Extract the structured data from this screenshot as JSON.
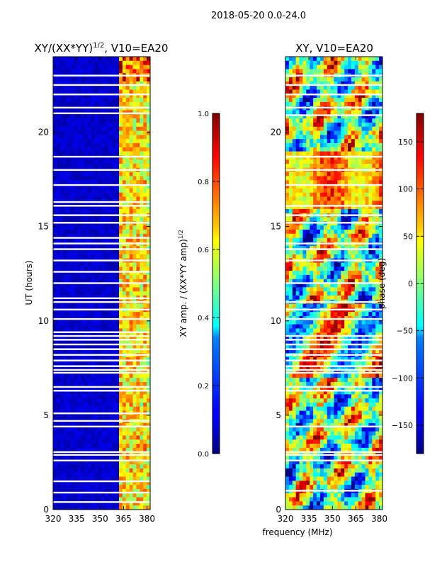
{
  "suptitle": "2018-05-20 0.0-24.0",
  "chart_data": [
    {
      "type": "heatmap",
      "title_main": "XY/(XX*YY)",
      "title_exp": "1/2",
      "title_tail": ", V10=EA20",
      "xlabel": "",
      "ylabel": "UT (hours)",
      "xlim": [
        320,
        382
      ],
      "ylim": [
        0,
        24
      ],
      "xticks": [
        320,
        335,
        350,
        365,
        380
      ],
      "yticks": [
        0,
        5,
        10,
        15,
        20
      ],
      "colorbar": {
        "label_main": "XY amp. / (XX*YY amp)",
        "label_exp": "1/2",
        "range": [
          0.0,
          1.0
        ],
        "ticks": [
          "0.0",
          "0.2",
          "0.4",
          "0.6",
          "0.8",
          "1.0"
        ],
        "colormap": "jet"
      },
      "flagged_hours": [
        0.4,
        0.9,
        1.5,
        2.6,
        2.9,
        3.05,
        4.4,
        4.7,
        5.1,
        6.3,
        6.5,
        7.25,
        7.4,
        7.6,
        7.9,
        8.2,
        8.5,
        8.75,
        9.0,
        9.2,
        9.4,
        10.1,
        10.6,
        11.0,
        11.2,
        12.0,
        12.6,
        13.2,
        13.8,
        14.1,
        14.4,
        15.2,
        15.6,
        16.1,
        16.3,
        17.2,
        18.0,
        18.7,
        21.0,
        21.3,
        22.0,
        22.5,
        23.0
      ]
    },
    {
      "type": "heatmap",
      "title": "XY, V10=EA20",
      "xlabel": "frequency (MHz)",
      "ylabel": "",
      "xlim": [
        320,
        382
      ],
      "ylim": [
        0,
        24
      ],
      "xticks": [
        320,
        335,
        350,
        365,
        380
      ],
      "yticks": [
        0,
        5,
        10,
        15,
        20
      ],
      "colorbar": {
        "label": "phase (deg)",
        "range": [
          -180,
          180
        ],
        "ticks": [
          "−150",
          "−100",
          "−50",
          "0",
          "50",
          "100",
          "150"
        ],
        "colormap": "jet"
      },
      "flagged_hours": [
        1.0,
        2.6,
        2.9,
        3.05,
        4.4,
        6.3,
        6.5,
        7.25,
        7.4,
        7.6,
        7.9,
        8.2,
        8.5,
        8.75,
        9.0,
        9.2,
        10.1,
        10.6,
        11.0,
        12.0,
        13.2,
        13.8,
        14.1,
        15.2,
        15.6,
        16.1,
        17.2,
        18.0,
        18.7,
        20.9,
        21.3,
        22.0,
        22.5,
        23.0
      ]
    }
  ]
}
